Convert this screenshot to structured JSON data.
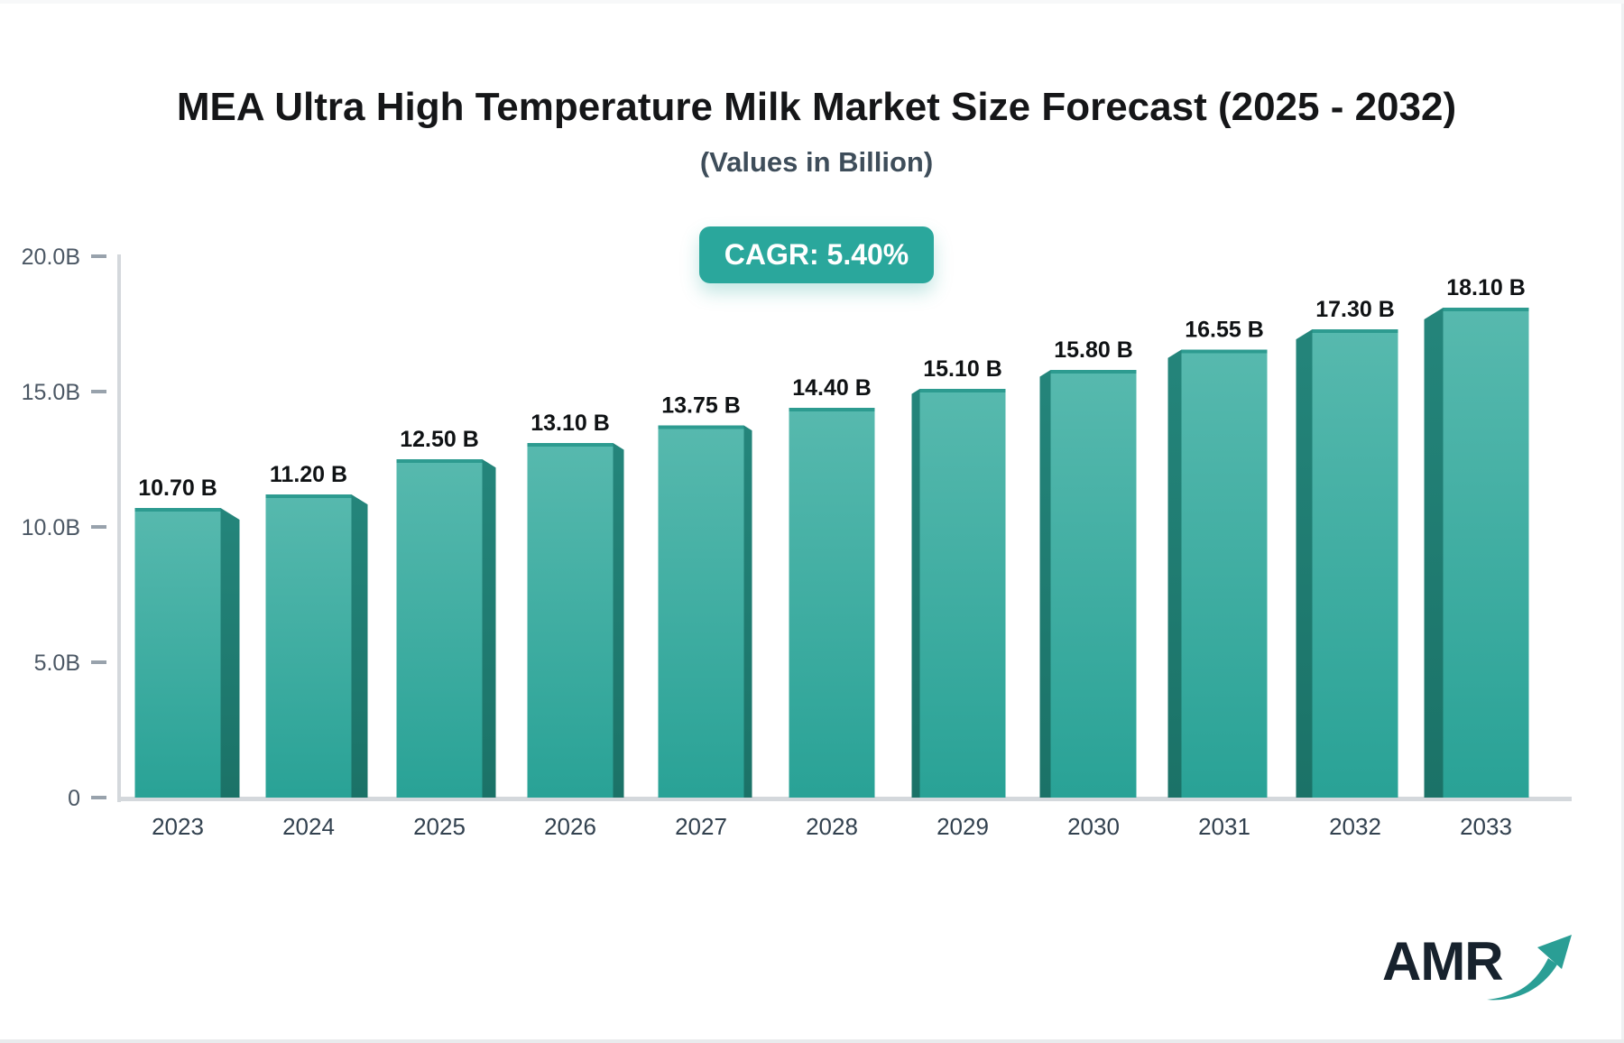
{
  "page": {
    "logo_text": "AMR"
  },
  "chart_data": {
    "type": "bar",
    "title": "MEA Ultra High Temperature Milk Market Size Forecast (2025 - 2032)",
    "subtitle": "(Values in Billion)",
    "annotation": "CAGR: 5.40%",
    "categories": [
      "2023",
      "2024",
      "2025",
      "2026",
      "2027",
      "2028",
      "2029",
      "2030",
      "2031",
      "2032",
      "2033"
    ],
    "values": [
      10.7,
      11.2,
      12.5,
      13.1,
      13.75,
      14.4,
      15.1,
      15.8,
      16.55,
      17.3,
      18.1
    ],
    "value_labels": [
      "10.70 B",
      "11.20 B",
      "12.50 B",
      "13.10 B",
      "13.75 B",
      "14.40 B",
      "15.10 B",
      "15.80 B",
      "16.55 B",
      "17.30 B",
      "18.10 B"
    ],
    "xlabel": "",
    "ylabel": "",
    "ylim": [
      0,
      20
    ],
    "y_ticks": [
      {
        "value": 20,
        "label": "20.0B"
      },
      {
        "value": 15,
        "label": "15.0B"
      },
      {
        "value": 10,
        "label": "10.0B"
      },
      {
        "value": 5,
        "label": "5.0B"
      },
      {
        "value": 0,
        "label": "0"
      }
    ],
    "grid": false,
    "legend": false,
    "bar_style": "3d-perspective-center",
    "colors": {
      "bar_front_top": "#57b9ae",
      "bar_front_bottom": "#29a296",
      "bar_side_top": "#24857b",
      "bar_side_bottom": "#1b7267",
      "bar_top_edge": "#2d9b90",
      "axis_line": "#d4d8dc",
      "tick": "#98a2ac",
      "y_label": "#4b5764",
      "x_label": "#32414f",
      "value_label": "#0f1214",
      "badge_bg": "#2aa79c",
      "badge_text": "#ffffff",
      "title": "#151618",
      "subtitle": "#3e4d5a",
      "logo_text": "#17222d",
      "logo_arrow": "#2a9e95"
    }
  }
}
